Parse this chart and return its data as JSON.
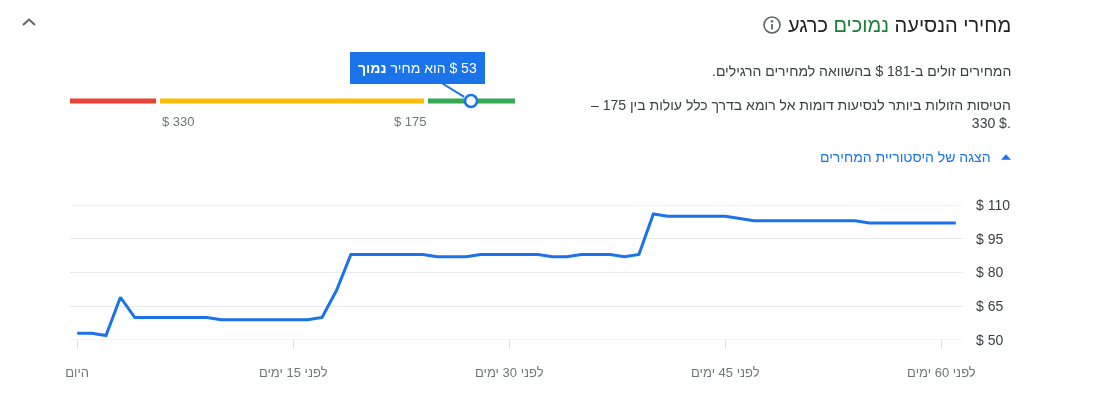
{
  "chart_data": [
    {
      "type": "other",
      "title": "מחירי הנסיעה נמוכים כרגע",
      "annotations": [
        "המחירים זולים ב-181 $ בהשוואה למחירים הרגילים.",
        "הטיסות הזולות ביותר לנסיעות דומות אל רומא בדרך כלל עולות בין 175 – 330 $.",
        "$ 330",
        "$ 175",
        "53 $ הוא מחיר נמוך"
      ]
    },
    {
      "type": "line",
      "title": "הצגה של היסטוריית המחירים",
      "categories": [
        "היום",
        null,
        null,
        null,
        null,
        null,
        null,
        null,
        null,
        null,
        null,
        null,
        null,
        null,
        null,
        "לפני 15 ימים",
        null,
        null,
        null,
        null,
        null,
        null,
        null,
        null,
        null,
        null,
        null,
        null,
        null,
        null,
        "לפני 30 ימים",
        null,
        null,
        null,
        null,
        null,
        null,
        null,
        null,
        null,
        null,
        null,
        null,
        null,
        null,
        "לפני 45 ימים",
        null,
        null,
        null,
        null,
        null,
        null,
        null,
        null,
        null,
        null,
        null,
        null,
        null,
        null,
        "לפני 60 ימים",
        null
      ],
      "series": [
        {
          "color": "#1a73e8",
          "values": [
            53,
            53,
            52,
            69,
            60,
            60,
            60,
            60,
            60,
            60,
            59,
            59,
            59,
            59,
            59,
            59,
            59,
            60,
            72,
            88,
            88,
            88,
            88,
            88,
            88,
            87,
            87,
            87,
            88,
            88,
            88,
            88,
            88,
            87,
            87,
            88,
            88,
            88,
            87,
            88,
            106,
            105,
            105,
            105,
            105,
            105,
            104,
            103,
            103,
            103,
            103,
            103,
            103,
            103,
            103,
            102,
            102,
            102,
            102,
            102,
            102,
            102
          ]
        }
      ],
      "ylim": [
        50,
        110
      ],
      "yticks": [
        {
          "value": 50,
          "label": "$ 50"
        },
        {
          "value": 65,
          "label": "$ 65"
        },
        {
          "value": 80,
          "label": "$ 80"
        },
        {
          "value": 95,
          "label": "$ 95"
        },
        {
          "value": 110,
          "label": "$ 110"
        }
      ],
      "grid": "y"
    }
  ]
}
